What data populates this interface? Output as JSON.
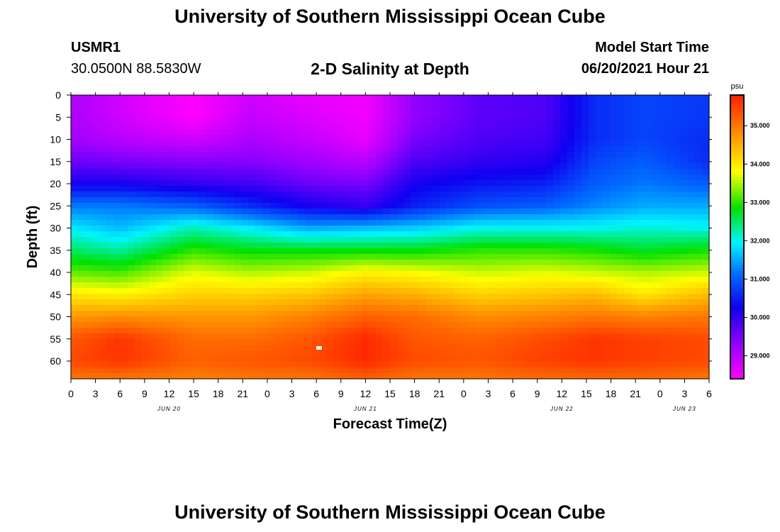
{
  "header": {
    "title": "University of Southern Mississippi Ocean Cube",
    "station_id": "USMR1",
    "station_coords": "30.0500N  88.5830W",
    "chart_title": "2-D Salinity at Depth",
    "model_start_label": "Model Start Time",
    "model_start_time": "06/20/2021 Hour 21"
  },
  "footer": {
    "title": "University of Southern Mississippi Ocean Cube"
  },
  "chart_data": {
    "type": "heatmap",
    "title": "2-D Salinity at Depth",
    "xlabel": "Forecast Time(Z)",
    "ylabel": "Depth (ft)",
    "x_range_hours": [
      0,
      78
    ],
    "x_ticks_hours": [
      0,
      3,
      6,
      9,
      12,
      15,
      18,
      21,
      24,
      27,
      30,
      33,
      36,
      39,
      42,
      45,
      48,
      51,
      54,
      57,
      60,
      63,
      66,
      69,
      72,
      75,
      78
    ],
    "x_tick_labels": [
      "0",
      "3",
      "6",
      "9",
      "12",
      "15",
      "18",
      "21",
      "0",
      "3",
      "6",
      "9",
      "12",
      "15",
      "18",
      "21",
      "0",
      "3",
      "6",
      "9",
      "12",
      "15",
      "18",
      "21",
      "0",
      "3",
      "6"
    ],
    "date_labels": [
      {
        "text": "JUN 20",
        "hour": 12
      },
      {
        "text": "JUN 21",
        "hour": 36
      },
      {
        "text": "JUN 22",
        "hour": 60
      },
      {
        "text": "JUN 23",
        "hour": 75
      }
    ],
    "y_range_ft": [
      0,
      64
    ],
    "y_ticks": [
      0,
      5,
      10,
      15,
      20,
      25,
      30,
      35,
      40,
      45,
      50,
      55,
      60
    ],
    "colorbar": {
      "unit": "psu",
      "min": 28.4,
      "max": 35.8,
      "tick_values": [
        29.0,
        30.0,
        31.0,
        32.0,
        33.0,
        34.0,
        35.0
      ],
      "tick_labels": [
        "29.000",
        "30.000",
        "31.000",
        "32.000",
        "33.000",
        "34.000",
        "35.000"
      ]
    },
    "profile_depths_ft": [
      0,
      5,
      10,
      15,
      20,
      25,
      30,
      35,
      40,
      45,
      50,
      55,
      60,
      64
    ],
    "profiles": [
      {
        "hour": 0,
        "salinity": [
          29.1,
          29.1,
          29.2,
          29.6,
          30.2,
          31.2,
          31.9,
          32.5,
          33.2,
          34.0,
          34.7,
          35.3,
          35.4,
          35.0
        ]
      },
      {
        "hour": 6,
        "salinity": [
          28.8,
          28.8,
          29.0,
          29.5,
          30.2,
          31.2,
          31.6,
          32.3,
          33.1,
          33.9,
          34.8,
          35.6,
          35.6,
          35.0
        ]
      },
      {
        "hour": 15,
        "salinity": [
          28.4,
          28.4,
          28.8,
          29.4,
          30.0,
          31.0,
          32.2,
          33.0,
          33.7,
          34.2,
          34.7,
          35.1,
          35.2,
          34.9
        ]
      },
      {
        "hour": 22,
        "salinity": [
          28.8,
          28.9,
          29.1,
          29.4,
          29.9,
          30.6,
          31.9,
          32.8,
          33.5,
          34.2,
          34.7,
          35.1,
          35.3,
          35.0
        ]
      },
      {
        "hour": 29,
        "salinity": [
          28.6,
          28.7,
          28.9,
          29.2,
          29.6,
          30.2,
          31.5,
          32.8,
          33.6,
          34.3,
          34.9,
          35.3,
          35.4,
          35.0
        ]
      },
      {
        "hour": 36,
        "salinity": [
          28.5,
          28.5,
          28.6,
          29.0,
          29.5,
          30.0,
          31.6,
          32.8,
          33.9,
          34.6,
          35.2,
          35.7,
          35.7,
          35.2
        ]
      },
      {
        "hour": 42,
        "salinity": [
          29.3,
          29.3,
          29.5,
          29.8,
          30.2,
          30.5,
          31.7,
          32.8,
          33.8,
          34.5,
          35.1,
          35.3,
          35.4,
          35.0
        ]
      },
      {
        "hour": 50,
        "salinity": [
          29.7,
          29.7,
          29.8,
          30.0,
          30.4,
          30.9,
          32.0,
          33.0,
          33.6,
          34.2,
          34.8,
          35.2,
          35.3,
          35.0
        ]
      },
      {
        "hour": 58,
        "salinity": [
          29.8,
          29.8,
          29.9,
          30.1,
          30.5,
          31.0,
          32.0,
          33.0,
          33.7,
          34.3,
          34.9,
          35.4,
          35.5,
          35.1
        ]
      },
      {
        "hour": 64,
        "salinity": [
          30.6,
          30.6,
          30.6,
          30.8,
          31.0,
          31.3,
          32.0,
          32.9,
          33.6,
          34.4,
          35.0,
          35.6,
          35.6,
          35.1
        ]
      },
      {
        "hour": 70,
        "salinity": [
          30.8,
          30.8,
          30.8,
          31.0,
          31.2,
          31.5,
          32.1,
          32.7,
          33.5,
          34.0,
          34.9,
          35.5,
          35.5,
          35.1
        ]
      },
      {
        "hour": 78,
        "salinity": [
          30.7,
          30.7,
          30.6,
          30.6,
          31.0,
          31.5,
          32.0,
          32.9,
          33.6,
          34.4,
          35.0,
          35.4,
          35.4,
          35.0
        ]
      }
    ]
  }
}
